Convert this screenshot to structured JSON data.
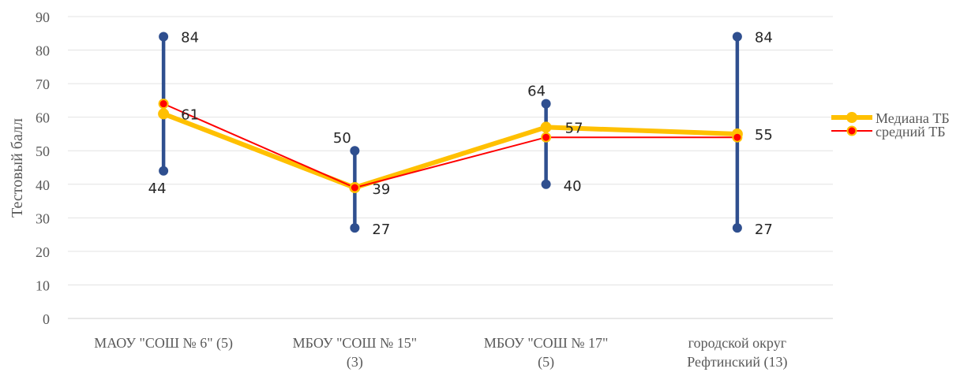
{
  "chart_data": {
    "type": "line",
    "title": "",
    "xlabel": "",
    "ylabel": "Тестовый балл",
    "ylim": [
      0,
      90
    ],
    "yticks": [
      0,
      10,
      20,
      30,
      40,
      50,
      60,
      70,
      80,
      90
    ],
    "grid": true,
    "legend_position": "right",
    "categories": [
      [
        "МАОУ \"СОШ № 6\" (5)"
      ],
      [
        "МБОУ \"СОШ № 15\"",
        "(3)"
      ],
      [
        "МБОУ \"СОШ № 17\"",
        "(5)"
      ],
      [
        "городской округ",
        "Рефтинский (13)"
      ]
    ],
    "range": {
      "max": [
        84,
        50,
        64,
        84
      ],
      "min": [
        44,
        27,
        40,
        27
      ],
      "max_labels": [
        "84",
        "50",
        "64",
        "84"
      ],
      "min_labels": [
        "44",
        "27",
        "40",
        "27"
      ],
      "color": "#2f4f8f"
    },
    "series": [
      {
        "name": "Медиана ТБ",
        "values": [
          61,
          39,
          57,
          55
        ],
        "value_labels": [
          "61",
          "39",
          "57",
          "55"
        ],
        "color": "#ffc000"
      },
      {
        "name": "средний ТБ",
        "values": [
          64,
          39,
          54,
          54
        ],
        "color": "#ff0000",
        "marker_fill": "#ff0000",
        "marker_edge": "#ffc000"
      }
    ]
  }
}
